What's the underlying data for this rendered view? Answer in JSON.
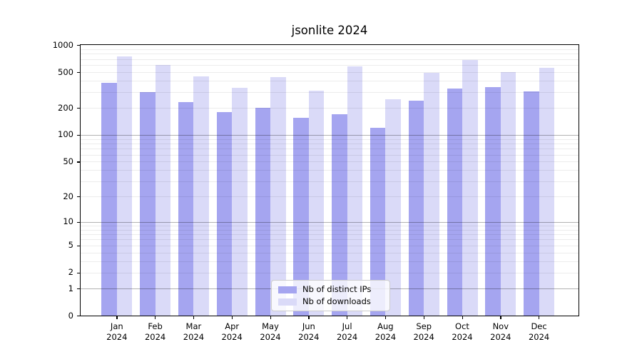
{
  "chart_data": {
    "type": "bar",
    "title": "jsonlite 2024",
    "categories": [
      "Jan",
      "Feb",
      "Mar",
      "Apr",
      "May",
      "Jun",
      "Jul",
      "Aug",
      "Sep",
      "Oct",
      "Nov",
      "Dec"
    ],
    "x_year": "2024",
    "series": [
      {
        "name": "Nb of distinct IPs",
        "color": "#a5a5f0",
        "values": [
          380,
          300,
          230,
          180,
          200,
          155,
          170,
          120,
          240,
          330,
          340,
          305
        ]
      },
      {
        "name": "Nb of downloads",
        "color": "#dadaf8",
        "values": [
          750,
          600,
          445,
          335,
          440,
          310,
          580,
          250,
          495,
          685,
          500,
          560
        ]
      }
    ],
    "y_ticks": [
      0,
      1,
      2,
      5,
      10,
      20,
      50,
      100,
      200,
      500,
      1000
    ],
    "ylim": [
      0,
      1000
    ],
    "y_scale": "log-like (1,2,5 decade ticks, 0 pinned at baseline)",
    "grid": "horizontal, major gridlines at 1/10/100, faint minor gridlines at 2-9 per decade",
    "legend_position": "inside bottom-center",
    "axis_color": "#000000",
    "major_grid_color": "#b3b3b3",
    "minor_grid_color": "#ececec",
    "background": "#ffffff"
  }
}
